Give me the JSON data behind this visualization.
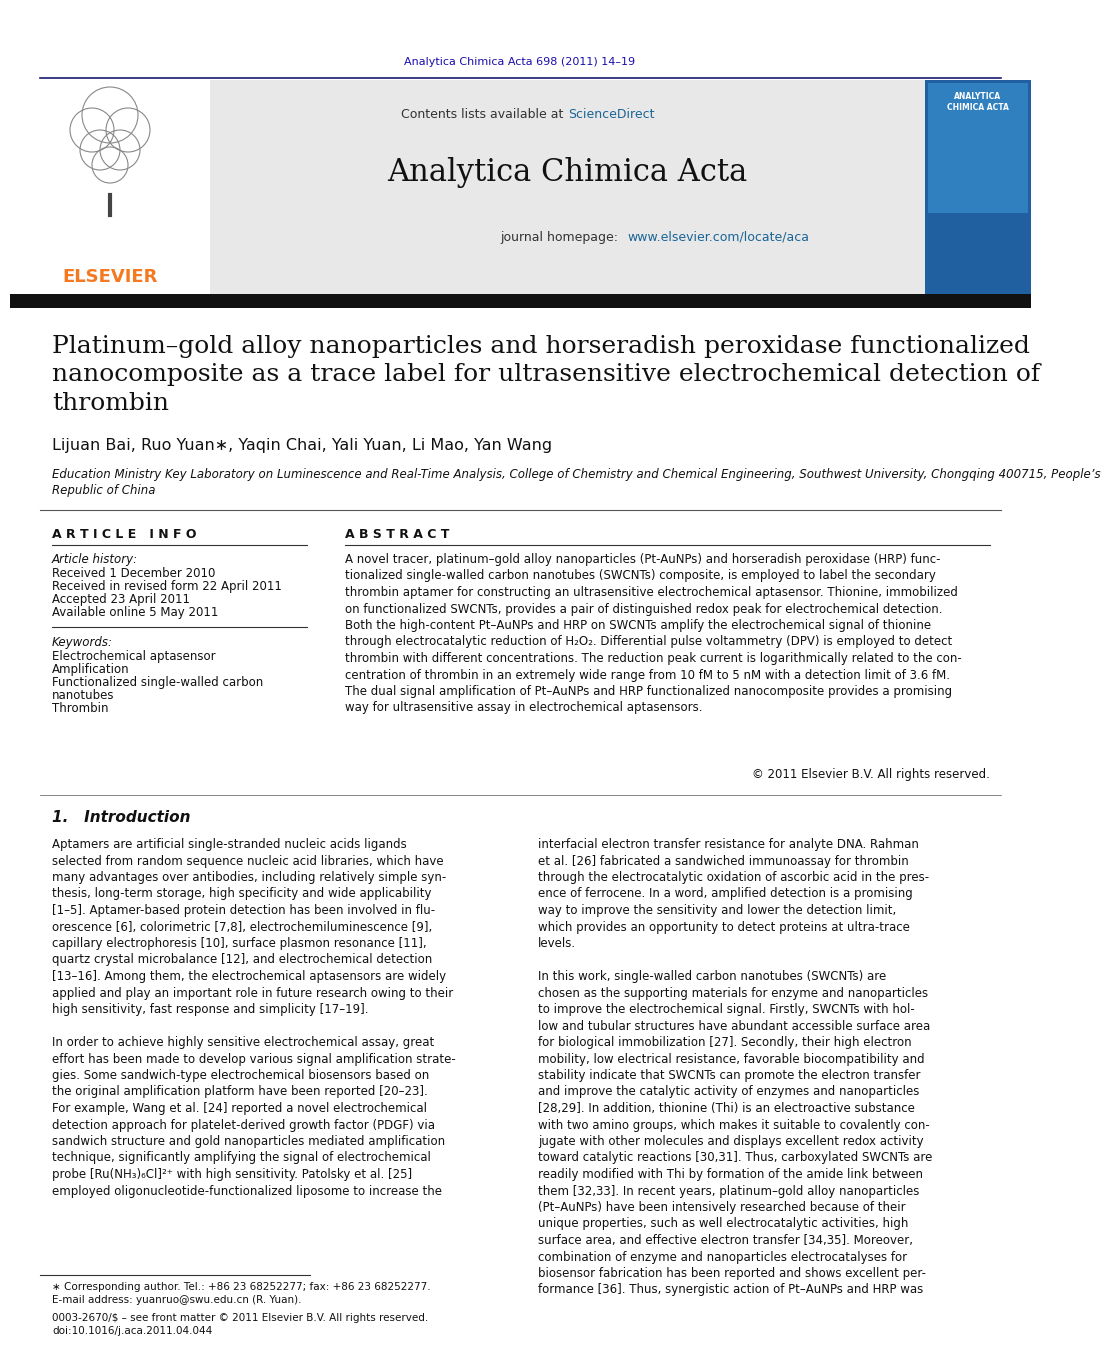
{
  "journal_ref": "Analytica Chimica Acta 698 (2011) 14–19",
  "journal_ref_color": "#1a0dab",
  "header_bg": "#e8e8e8",
  "contents_line": "Contents lists available at ScienceDirect",
  "sciencedirect_color": "#1a6496",
  "journal_name": "Analytica Chimica Acta",
  "homepage_line": "journal homepage: www.elsevier.com/locate/aca",
  "homepage_url_color": "#1a6496",
  "separator_color": "#1a1a6e",
  "dark_bar_color": "#1a1a1a",
  "article_title": "Platinum–gold alloy nanoparticles and horseradish peroxidase functionalized\nnanocomposite as a trace label for ultrasensitive electrochemical detection of\nthrombin",
  "authors": "Lijuan Bai, Ruo Yuan∗, Yaqin Chai, Yali Yuan, Li Mao, Yan Wang",
  "affiliation": "Education Ministry Key Laboratory on Luminescence and Real-Time Analysis, College of Chemistry and Chemical Engineering, Southwest University, Chongqing 400715, People’s\nRepublic of China",
  "article_info_header": "A R T I C L E   I N F O",
  "abstract_header": "A B S T R A C T",
  "article_history_label": "Article history:",
  "received": "Received 1 December 2010",
  "revised": "Received in revised form 22 April 2011",
  "accepted": "Accepted 23 April 2011",
  "available": "Available online 5 May 2011",
  "keywords_label": "Keywords:",
  "keyword1": "Electrochemical aptasensor",
  "keyword2": "Amplification",
  "keyword3": "Functionalized single-walled carbon",
  "keyword3b": "nanotubes",
  "keyword4": "Thrombin",
  "abstract_text": "A novel tracer, platinum–gold alloy nanoparticles (Pt-AuNPs) and horseradish peroxidase (HRP) func-\ntionalized single-walled carbon nanotubes (SWCNTs) composite, is employed to label the secondary\nthrombin aptamer for constructing an ultrasensitive electrochemical aptasensor. Thionine, immobilized\non functionalized SWCNTs, provides a pair of distinguished redox peak for electrochemical detection.\nBoth the high-content Pt–AuNPs and HRP on SWCNTs amplify the electrochemical signal of thionine\nthrough electrocatalytic reduction of H₂O₂. Differential pulse voltammetry (DPV) is employed to detect\nthrombin with different concentrations. The reduction peak current is logarithmically related to the con-\ncentration of thrombin in an extremely wide range from 10 fM to 5 nM with a detection limit of 3.6 fM.\nThe dual signal amplification of Pt–AuNPs and HRP functionalized nanocomposite provides a promising\nway for ultrasensitive assay in electrochemical aptasensors.",
  "copyright": "© 2011 Elsevier B.V. All rights reserved.",
  "intro_header": "1.   Introduction",
  "intro_col1": "Aptamers are artificial single-stranded nucleic acids ligands\nselected from random sequence nucleic acid libraries, which have\nmany advantages over antibodies, including relatively simple syn-\nthesis, long-term storage, high specificity and wide applicability\n[1–5]. Aptamer-based protein detection has been involved in flu-\norescence [6], colorimetric [7,8], electrochemiluminescence [9],\ncapillary electrophoresis [10], surface plasmon resonance [11],\nquartz crystal microbalance [12], and electrochemical detection\n[13–16]. Among them, the electrochemical aptasensors are widely\napplied and play an important role in future research owing to their\nhigh sensitivity, fast response and simplicity [17–19].\n\nIn order to achieve highly sensitive electrochemical assay, great\neffort has been made to develop various signal amplification strate-\ngies. Some sandwich-type electrochemical biosensors based on\nthe original amplification platform have been reported [20–23].\nFor example, Wang et al. [24] reported a novel electrochemical\ndetection approach for platelet-derived growth factor (PDGF) via\nsandwich structure and gold nanoparticles mediated amplification\ntechnique, significantly amplifying the signal of electrochemical\nprobe [Ru(NH₃)₆Cl]²⁺ with high sensitivity. Patolsky et al. [25]\nemployed oligonucleotide-functionalized liposome to increase the",
  "intro_col2": "interfacial electron transfer resistance for analyte DNA. Rahman\net al. [26] fabricated a sandwiched immunoassay for thrombin\nthrough the electrocatalytic oxidation of ascorbic acid in the pres-\nence of ferrocene. In a word, amplified detection is a promising\nway to improve the sensitivity and lower the detection limit,\nwhich provides an opportunity to detect proteins at ultra-trace\nlevels.\n\nIn this work, single-walled carbon nanotubes (SWCNTs) are\nchosen as the supporting materials for enzyme and nanoparticles\nto improve the electrochemical signal. Firstly, SWCNTs with hol-\nlow and tubular structures have abundant accessible surface area\nfor biological immobilization [27]. Secondly, their high electron\nmobility, low electrical resistance, favorable biocompatibility and\nstability indicate that SWCNTs can promote the electron transfer\nand improve the catalytic activity of enzymes and nanoparticles\n[28,29]. In addition, thionine (Thi) is an electroactive substance\nwith two amino groups, which makes it suitable to covalently con-\njugate with other molecules and displays excellent redox activity\ntoward catalytic reactions [30,31]. Thus, carboxylated SWCNTs are\nreadily modified with Thi by formation of the amide link between\nthem [32,33]. In recent years, platinum–gold alloy nanoparticles\n(Pt–AuNPs) have been intensively researched because of their\nunique properties, such as well electrocatalytic activities, high\nsurface area, and effective electron transfer [34,35]. Moreover,\ncombination of enzyme and nanoparticles electrocatalyses for\nbiosensor fabrication has been reported and shows excellent per-\nformance [36]. Thus, synergistic action of Pt–AuNPs and HRP was",
  "footnote1": "∗ Corresponding author. Tel.: +86 23 68252277; fax: +86 23 68252277.",
  "footnote2": "E-mail address: yuanruo@swu.edu.cn (R. Yuan).",
  "footnote3": "0003-2670/$ – see front matter © 2011 Elsevier B.V. All rights reserved.",
  "footnote4": "doi:10.1016/j.aca.2011.04.044",
  "elsevier_orange": "#f47920",
  "elsevier_dark": "#1a1a6e",
  "text_color": "#000000",
  "link_color": "#1a6496"
}
